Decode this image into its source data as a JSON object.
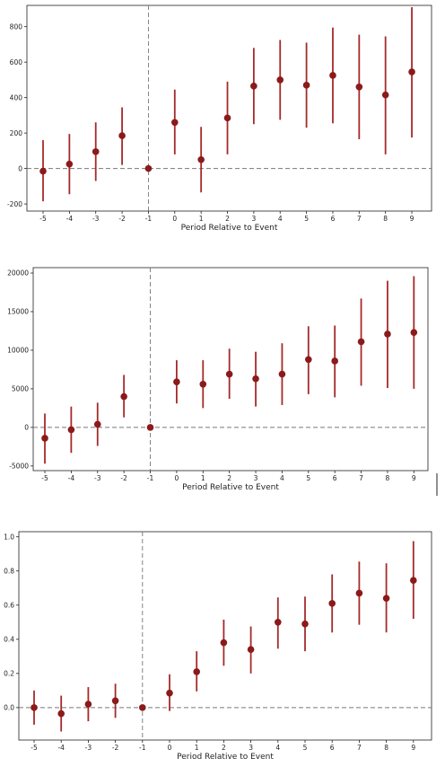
{
  "colors": {
    "point": "#8b1a1a",
    "ci": "#a52a2a",
    "reference_line": "#777777"
  },
  "chart_data": [
    {
      "type": "scatter",
      "title": "",
      "xlabel": "Period Relative to Event",
      "ylabel": "",
      "categories": [
        "-5",
        "-4",
        "-3",
        "-2",
        "-1",
        "0",
        "1",
        "2",
        "3",
        "4",
        "5",
        "6",
        "7",
        "8",
        "9"
      ],
      "reference_x": "-1",
      "reference_y": 0,
      "ylim": [
        -240,
        920
      ],
      "yticks": [
        -200,
        0,
        200,
        400,
        600,
        800
      ],
      "points": [
        {
          "x": "-5",
          "y": -15,
          "lo": -185,
          "hi": 160
        },
        {
          "x": "-4",
          "y": 25,
          "lo": -145,
          "hi": 195
        },
        {
          "x": "-3",
          "y": 95,
          "lo": -70,
          "hi": 260
        },
        {
          "x": "-2",
          "y": 185,
          "lo": 20,
          "hi": 345
        },
        {
          "x": "-1",
          "y": 0,
          "lo": 0,
          "hi": 0
        },
        {
          "x": "0",
          "y": 260,
          "lo": 80,
          "hi": 445
        },
        {
          "x": "1",
          "y": 50,
          "lo": -135,
          "hi": 235
        },
        {
          "x": "2",
          "y": 285,
          "lo": 80,
          "hi": 490
        },
        {
          "x": "3",
          "y": 465,
          "lo": 250,
          "hi": 680
        },
        {
          "x": "4",
          "y": 500,
          "lo": 275,
          "hi": 725
        },
        {
          "x": "5",
          "y": 470,
          "lo": 230,
          "hi": 710
        },
        {
          "x": "6",
          "y": 525,
          "lo": 255,
          "hi": 795
        },
        {
          "x": "7",
          "y": 460,
          "lo": 165,
          "hi": 755
        },
        {
          "x": "8",
          "y": 415,
          "lo": 80,
          "hi": 745
        },
        {
          "x": "9",
          "y": 545,
          "lo": 175,
          "hi": 910
        }
      ]
    },
    {
      "type": "scatter",
      "title": "",
      "xlabel": "Period Relative to Event",
      "ylabel": "",
      "categories": [
        "-5",
        "-4",
        "-3",
        "-2",
        "-1",
        "0",
        "1",
        "2",
        "3",
        "4",
        "5",
        "6",
        "7",
        "8",
        "9"
      ],
      "reference_x": "-1",
      "reference_y": 0,
      "ylim": [
        -5600,
        20700
      ],
      "yticks": [
        -5000,
        0,
        5000,
        10000,
        15000,
        20000
      ],
      "points": [
        {
          "x": "-5",
          "y": -1400,
          "lo": -4700,
          "hi": 1800
        },
        {
          "x": "-4",
          "y": -300,
          "lo": -3300,
          "hi": 2700
        },
        {
          "x": "-3",
          "y": 400,
          "lo": -2400,
          "hi": 3200
        },
        {
          "x": "-2",
          "y": 4000,
          "lo": 1300,
          "hi": 6800
        },
        {
          "x": "-1",
          "y": 0,
          "lo": 0,
          "hi": 0
        },
        {
          "x": "0",
          "y": 5900,
          "lo": 3100,
          "hi": 8700
        },
        {
          "x": "1",
          "y": 5600,
          "lo": 2500,
          "hi": 8700
        },
        {
          "x": "2",
          "y": 6900,
          "lo": 3700,
          "hi": 10200
        },
        {
          "x": "3",
          "y": 6300,
          "lo": 2700,
          "hi": 9800
        },
        {
          "x": "4",
          "y": 6900,
          "lo": 2900,
          "hi": 10900
        },
        {
          "x": "5",
          "y": 8800,
          "lo": 4300,
          "hi": 13100
        },
        {
          "x": "6",
          "y": 8600,
          "lo": 3900,
          "hi": 13200
        },
        {
          "x": "7",
          "y": 11100,
          "lo": 5400,
          "hi": 16700
        },
        {
          "x": "8",
          "y": 12100,
          "lo": 5100,
          "hi": 19000
        },
        {
          "x": "9",
          "y": 12300,
          "lo": 5000,
          "hi": 19600
        }
      ]
    },
    {
      "type": "scatter",
      "title": "",
      "xlabel": "Period Relative to Event",
      "ylabel": "",
      "categories": [
        "-5",
        "-4",
        "-3",
        "-2",
        "-1",
        "0",
        "1",
        "2",
        "3",
        "4",
        "5",
        "6",
        "7",
        "8",
        "9"
      ],
      "reference_x": "-1",
      "reference_y": 0,
      "ylim": [
        -0.19,
        1.03
      ],
      "yticks": [
        0.0,
        0.2,
        0.4,
        0.6,
        0.8,
        1.0
      ],
      "ytick_labels": [
        "0.0",
        "0.2",
        "0.4",
        "0.6",
        "0.8",
        "1.0"
      ],
      "points": [
        {
          "x": "-5",
          "y": 0.0,
          "lo": -0.1,
          "hi": 0.1
        },
        {
          "x": "-4",
          "y": -0.035,
          "lo": -0.14,
          "hi": 0.07
        },
        {
          "x": "-3",
          "y": 0.02,
          "lo": -0.08,
          "hi": 0.12
        },
        {
          "x": "-2",
          "y": 0.04,
          "lo": -0.06,
          "hi": 0.14
        },
        {
          "x": "-1",
          "y": 0.0,
          "lo": 0.0,
          "hi": 0.0
        },
        {
          "x": "0",
          "y": 0.085,
          "lo": -0.02,
          "hi": 0.195
        },
        {
          "x": "1",
          "y": 0.21,
          "lo": 0.095,
          "hi": 0.33
        },
        {
          "x": "2",
          "y": 0.38,
          "lo": 0.245,
          "hi": 0.515
        },
        {
          "x": "3",
          "y": 0.34,
          "lo": 0.2,
          "hi": 0.475
        },
        {
          "x": "4",
          "y": 0.5,
          "lo": 0.345,
          "hi": 0.645
        },
        {
          "x": "5",
          "y": 0.49,
          "lo": 0.33,
          "hi": 0.65
        },
        {
          "x": "6",
          "y": 0.61,
          "lo": 0.44,
          "hi": 0.78
        },
        {
          "x": "7",
          "y": 0.67,
          "lo": 0.485,
          "hi": 0.855
        },
        {
          "x": "8",
          "y": 0.64,
          "lo": 0.44,
          "hi": 0.845
        },
        {
          "x": "9",
          "y": 0.745,
          "lo": 0.52,
          "hi": 0.975
        }
      ]
    }
  ]
}
